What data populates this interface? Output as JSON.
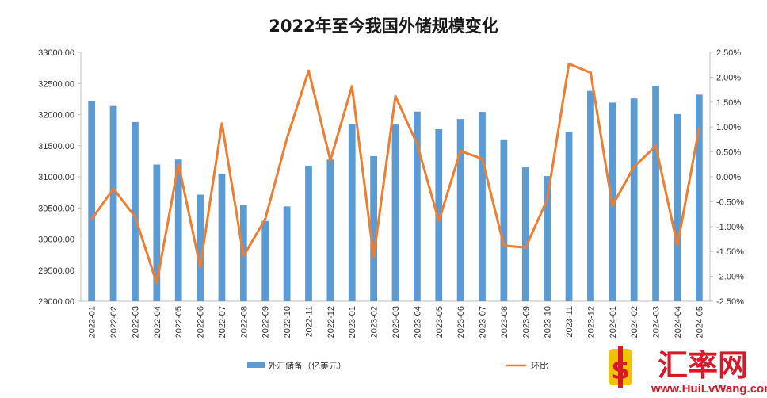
{
  "chart_data": {
    "type": "bar+line",
    "title": "2022年至今我国外储规模变化",
    "categories": [
      "2022-01",
      "2022-02",
      "2022-03",
      "2022-04",
      "2022-05",
      "2022-06",
      "2022-07",
      "2022-08",
      "2022-09",
      "2022-10",
      "2022-11",
      "2022-12",
      "2023-01",
      "2023-02",
      "2023-03",
      "2023-04",
      "2023-05",
      "2023-06",
      "2023-07",
      "2023-08",
      "2023-09",
      "2023-10",
      "2023-11",
      "2023-12",
      "2024-01",
      "2024-02",
      "2024-03",
      "2024-04",
      "2024-05"
    ],
    "series": [
      {
        "name": "外汇储备（亿美元）",
        "type": "bar",
        "axis": "left",
        "color": "#5b9bd5",
        "values": [
          32216,
          32138,
          31880,
          31197,
          31278,
          30713,
          31041,
          30549,
          30290,
          30524,
          31175,
          31277,
          31845,
          31332,
          31839,
          32048,
          31765,
          31929,
          32043,
          31601,
          31151,
          31012,
          31718,
          32380,
          32193,
          32258,
          32457,
          32008,
          32320
        ]
      },
      {
        "name": "环比",
        "type": "line",
        "axis": "right",
        "color": "#ed7d31",
        "values": [
          -0.85,
          -0.24,
          -0.8,
          -2.14,
          0.26,
          -1.81,
          1.07,
          -1.59,
          -0.85,
          0.77,
          2.13,
          0.33,
          1.82,
          -1.61,
          1.62,
          0.66,
          -0.89,
          0.52,
          0.36,
          -1.38,
          -1.42,
          -0.45,
          2.27,
          2.09,
          -0.58,
          0.2,
          0.62,
          -1.38,
          0.98
        ]
      }
    ],
    "y_left": {
      "ylim": [
        29000,
        33000
      ],
      "ticks": [
        "29000.00",
        "29500.00",
        "30000.00",
        "30500.00",
        "31000.00",
        "31500.00",
        "32000.00",
        "32500.00",
        "33000.00"
      ]
    },
    "y_right": {
      "ylim": [
        -2.5,
        2.5
      ],
      "ticks": [
        "-2.50%",
        "-2.00%",
        "-1.50%",
        "-1.00%",
        "-0.50%",
        "0.00%",
        "0.50%",
        "1.00%",
        "1.50%",
        "2.00%",
        "2.50%"
      ]
    },
    "grid": false,
    "legend_position": "bottom"
  },
  "watermark": {
    "cn": "汇率网",
    "en": "www.HuiLvWang.com",
    "icon": "dollar-sign-logo-icon",
    "color": "#d7192a"
  }
}
